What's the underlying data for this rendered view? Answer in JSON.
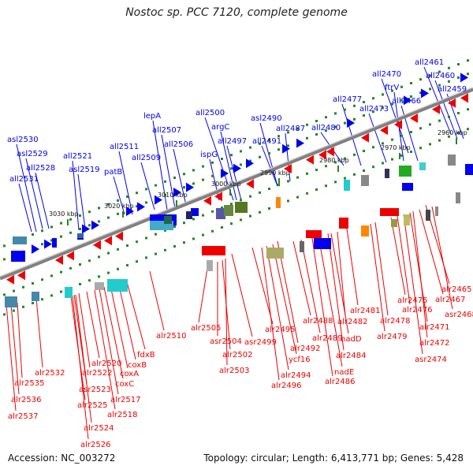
{
  "title": "Nostoc sp. PCC 7120, complete genome",
  "footer": {
    "accession": "Accession: NC_003272",
    "topology": "Topology: circular; Length: 6,413,771 bp; Genes: 5,428"
  },
  "colors": {
    "forward_strand": "#0000ee",
    "reverse_strand": "#ee0000",
    "backbone": "#808080",
    "tick": "#228822"
  },
  "kbp_markers": [
    "2960 kbp",
    "2970 kbp",
    "2980 kbp",
    "2990 kbp",
    "3000 kbp",
    "3010 kbp",
    "3020 kbp",
    "3030 kbp"
  ],
  "top_genes": [
    "all2461",
    "all2460",
    "all2459",
    "all2470",
    "ftrV",
    "all2466",
    "all2477",
    "all2473",
    "all2480",
    "all2500",
    "asl2490",
    "all2487",
    "argC",
    "all2491",
    "lepA",
    "all2497",
    "all2507",
    "ispG",
    "all2506",
    "all2511",
    "all2509",
    "asl2530",
    "asl2529",
    "all2528",
    "all2521",
    "asl2519",
    "all2531",
    "patB"
  ],
  "bottom_genes": [
    "alr2465",
    "alr2467",
    "alr2475",
    "alr2476",
    "asr2468",
    "alr2471",
    "alr2472",
    "alr2478",
    "asr2474",
    "alr2479",
    "alr2481",
    "alr2482",
    "alr2488",
    "nadD",
    "alr2489",
    "alr2484",
    "alr2495",
    "alr2492",
    "ycf16",
    "nadE",
    "alr2486",
    "alr2494",
    "alr2496",
    "asr2499",
    "alr2505",
    "asr2504",
    "alr2502",
    "alr2503",
    "alr2510",
    "fdxB",
    "coxB",
    "coxA",
    "alr2520",
    "alr2522",
    "coxC",
    "alr2517",
    "asr2523",
    "alr2518",
    "alr2525",
    "alr2524",
    "alr2526",
    "alr2532",
    "alr2535",
    "alr2536",
    "alr2537"
  ]
}
